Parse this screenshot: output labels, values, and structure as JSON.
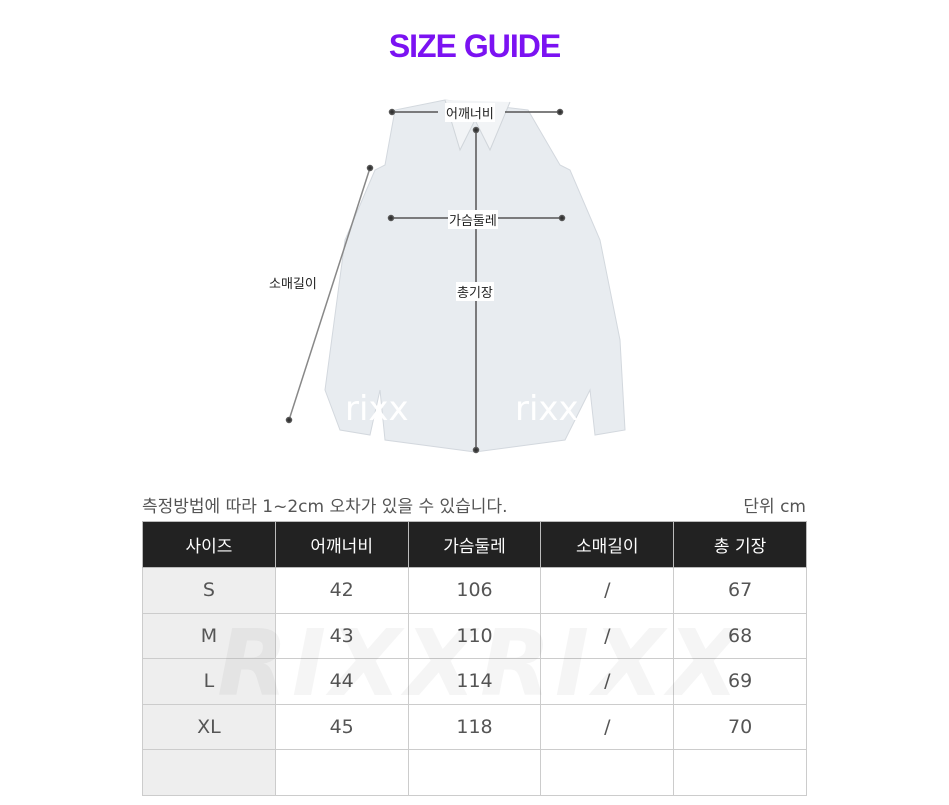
{
  "title": "SIZE GUIDE",
  "diagram": {
    "shoulder": "어깨너비",
    "chest": "가슴둘레",
    "sleeve": "소매길이",
    "length": "총기장",
    "watermark": "rixx"
  },
  "note": "측정방법에 따라 1~2cm 오차가 있을 수 있습니다.",
  "unit": "단위 cm",
  "table": {
    "headers": [
      "사이즈",
      "어깨너비",
      "가슴둘레",
      "소매길이",
      "총 기장"
    ],
    "rows": [
      [
        "S",
        "42",
        "106",
        "/",
        "67"
      ],
      [
        "M",
        "43",
        "110",
        "/",
        "68"
      ],
      [
        "L",
        "44",
        "114",
        "/",
        "69"
      ],
      [
        "XL",
        "45",
        "118",
        "/",
        "70"
      ],
      [
        "",
        "",
        "",
        "",
        ""
      ]
    ]
  },
  "watermark": "RIXXRIXX",
  "colors": {
    "title": "#7b12f2",
    "header_bg": "#222222"
  }
}
